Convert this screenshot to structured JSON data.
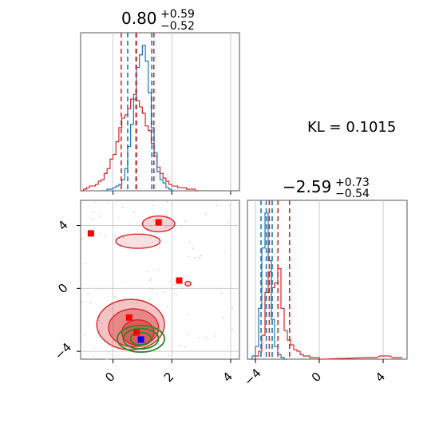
{
  "chart_data": [
    {
      "type": "histogram",
      "panel": "top-left",
      "title": "0.80^{+0.59}_{-0.52}",
      "title_parts": {
        "main": "0.80",
        "plus": "+0.59",
        "minus": "−0.52"
      },
      "xlim": [
        -1.1,
        4.3
      ],
      "x_ticks": [
        0,
        2,
        4
      ],
      "grid": true,
      "series": [
        {
          "color": "#1f77b4",
          "bin_width": 0.1,
          "bins": [
            [
              -0.3,
              0.0
            ],
            [
              -0.2,
              0.01
            ],
            [
              -0.1,
              0.01
            ],
            [
              0.0,
              0.02
            ],
            [
              0.1,
              0.03
            ],
            [
              0.2,
              0.04
            ],
            [
              0.3,
              0.07
            ],
            [
              0.4,
              0.14
            ],
            [
              0.5,
              0.28
            ],
            [
              0.6,
              0.42
            ],
            [
              0.7,
              0.58
            ],
            [
              0.8,
              0.78
            ],
            [
              0.9,
              0.86
            ],
            [
              1.0,
              0.92
            ],
            [
              1.1,
              0.82
            ],
            [
              1.2,
              0.62
            ],
            [
              1.3,
              0.4
            ],
            [
              1.4,
              0.24
            ],
            [
              1.5,
              0.12
            ],
            [
              1.6,
              0.07
            ],
            [
              1.7,
              0.05
            ],
            [
              1.8,
              0.02
            ],
            [
              1.9,
              0.01
            ],
            [
              2.0,
              0.0
            ]
          ],
          "quantile_lines": [
            0.5,
            0.78,
            1.32
          ]
        },
        {
          "color": "#d62728",
          "bin_width": 0.1,
          "bins": [
            [
              -1.1,
              0.0
            ],
            [
              -1.0,
              0.01
            ],
            [
              -0.9,
              0.02
            ],
            [
              -0.8,
              0.03
            ],
            [
              -0.7,
              0.03
            ],
            [
              -0.6,
              0.04
            ],
            [
              -0.5,
              0.06
            ],
            [
              -0.4,
              0.07
            ],
            [
              -0.3,
              0.11
            ],
            [
              -0.2,
              0.14
            ],
            [
              -0.1,
              0.2
            ],
            [
              0.0,
              0.23
            ],
            [
              0.1,
              0.31
            ],
            [
              0.2,
              0.4
            ],
            [
              0.3,
              0.46
            ],
            [
              0.4,
              0.48
            ],
            [
              0.5,
              0.52
            ],
            [
              0.6,
              0.58
            ],
            [
              0.7,
              0.61
            ],
            [
              0.8,
              0.57
            ],
            [
              0.9,
              0.53
            ],
            [
              1.0,
              0.49
            ],
            [
              1.1,
              0.41
            ],
            [
              1.2,
              0.38
            ],
            [
              1.3,
              0.3
            ],
            [
              1.4,
              0.22
            ],
            [
              1.5,
              0.15
            ],
            [
              1.6,
              0.11
            ],
            [
              1.7,
              0.08
            ],
            [
              1.8,
              0.06
            ],
            [
              1.9,
              0.04
            ],
            [
              2.0,
              0.03
            ],
            [
              2.1,
              0.03
            ],
            [
              2.2,
              0.02
            ],
            [
              2.3,
              0.02
            ],
            [
              2.4,
              0.02
            ],
            [
              2.5,
              0.01
            ],
            [
              2.6,
              0.01
            ],
            [
              2.7,
              0.01
            ],
            [
              2.8,
              0.0
            ]
          ],
          "quantile_lines": [
            0.28,
            0.8,
            1.39
          ]
        }
      ]
    },
    {
      "type": "histogram",
      "panel": "bottom-right",
      "title": "-2.59^{+0.73}_{-0.54}",
      "title_parts": {
        "main": "−2.59",
        "plus": "+0.73",
        "minus": "−0.54"
      },
      "xlim": [
        -4.5,
        5.5
      ],
      "x_ticks": [
        -4,
        0,
        4
      ],
      "x_tick_labels": [
        "−4",
        "0",
        "4"
      ],
      "grid": true,
      "series": [
        {
          "color": "#1f77b4",
          "bin_width": 0.2,
          "bins": [
            [
              -4.4,
              0.0
            ],
            [
              -4.2,
              0.02
            ],
            [
              -4.0,
              0.08
            ],
            [
              -3.8,
              0.32
            ],
            [
              -3.6,
              0.7
            ],
            [
              -3.4,
              0.92
            ],
            [
              -3.2,
              0.62
            ],
            [
              -3.0,
              0.25
            ],
            [
              -2.8,
              0.08
            ],
            [
              -2.6,
              0.03
            ],
            [
              -2.4,
              0.01
            ],
            [
              -2.2,
              0.0
            ]
          ],
          "quantile_lines": [
            -3.65,
            -3.32,
            -2.95
          ]
        },
        {
          "color": "#d62728",
          "bin_width": 0.2,
          "bins": [
            [
              -4.2,
              0.0
            ],
            [
              -4.0,
              0.02
            ],
            [
              -3.8,
              0.05
            ],
            [
              -3.6,
              0.15
            ],
            [
              -3.4,
              0.42
            ],
            [
              -3.2,
              0.55
            ],
            [
              -3.0,
              0.45
            ],
            [
              -2.8,
              0.48
            ],
            [
              -2.6,
              0.57
            ],
            [
              -2.4,
              0.32
            ],
            [
              -2.2,
              0.18
            ],
            [
              -2.0,
              0.12
            ],
            [
              -1.8,
              0.09
            ],
            [
              -1.6,
              0.06
            ],
            [
              -1.4,
              0.05
            ],
            [
              -1.2,
              0.03
            ],
            [
              -1.0,
              0.02
            ],
            [
              -0.8,
              0.02
            ],
            [
              -0.6,
              0.01
            ],
            [
              -0.4,
              0.01
            ],
            [
              -0.2,
              0.01
            ],
            [
              0.0,
              0.0
            ],
            [
              3.0,
              0.01
            ],
            [
              3.4,
              0.01
            ],
            [
              3.8,
              0.02
            ],
            [
              4.2,
              0.02
            ],
            [
              4.6,
              0.01
            ],
            [
              5.0,
              0.01
            ]
          ],
          "quantile_lines": [
            -3.13,
            -2.59,
            -1.86
          ]
        }
      ]
    },
    {
      "type": "scatter",
      "panel": "bottom-left",
      "xlim": [
        -1.1,
        4.3
      ],
      "ylim": [
        -4.5,
        5.6
      ],
      "x_ticks": [
        0,
        2,
        4
      ],
      "y_ticks": [
        -4,
        0,
        4
      ],
      "y_tick_labels": [
        "−4",
        "0",
        "4"
      ],
      "grid": true,
      "red_contours": [
        {
          "cx": 0.6,
          "cy": -2.3,
          "rx": 1.15,
          "ry": 1.6,
          "opacity": 0.5
        },
        {
          "cx": 0.7,
          "cy": -2.5,
          "rx": 0.85,
          "ry": 1.2,
          "opacity": 0.7
        },
        {
          "cx": 0.85,
          "cy": -2.8,
          "rx": 0.55,
          "ry": 0.8,
          "opacity": 0.85
        },
        {
          "cx": 0.85,
          "cy": 3.0,
          "rx": 0.75,
          "ry": 0.45,
          "opacity": 0.25
        },
        {
          "cx": 1.55,
          "cy": 4.1,
          "rx": 0.55,
          "ry": 0.5,
          "opacity": 0.35
        },
        {
          "cx": 2.55,
          "cy": 0.3,
          "rx": 0.1,
          "ry": 0.15,
          "opacity": 0.4
        }
      ],
      "green_contours": [
        {
          "cx": 0.95,
          "cy": -3.2,
          "rx": 0.8,
          "ry": 0.85
        },
        {
          "cx": 0.95,
          "cy": -3.2,
          "rx": 0.6,
          "ry": 0.65
        },
        {
          "cx": 0.95,
          "cy": -3.2,
          "rx": 0.35,
          "ry": 0.4
        }
      ],
      "red_points": [
        {
          "x": -0.75,
          "y": 3.5
        },
        {
          "x": 1.55,
          "y": 4.2
        },
        {
          "x": 2.25,
          "y": 0.5
        },
        {
          "x": 0.55,
          "y": -1.85
        },
        {
          "x": 0.8,
          "y": -2.8
        }
      ],
      "blue_points": [
        {
          "x": 0.95,
          "y": -3.25
        }
      ]
    }
  ],
  "annotation": {
    "kl_text": "KL = 0.1015"
  },
  "colors": {
    "blue": "#1f77b4",
    "red": "#d62728",
    "green": "#228B22",
    "grid": "#cccccc",
    "axis": "#555555"
  }
}
